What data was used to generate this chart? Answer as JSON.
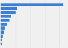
{
  "values": [
    85,
    22,
    20,
    14,
    12,
    8,
    6,
    4.5,
    3,
    2,
    1.5
  ],
  "bar_color": "#3a7fd5",
  "background_color": "#f0f0f0",
  "grid_color": "#e0e0e0",
  "xlim": [
    0,
    90
  ]
}
